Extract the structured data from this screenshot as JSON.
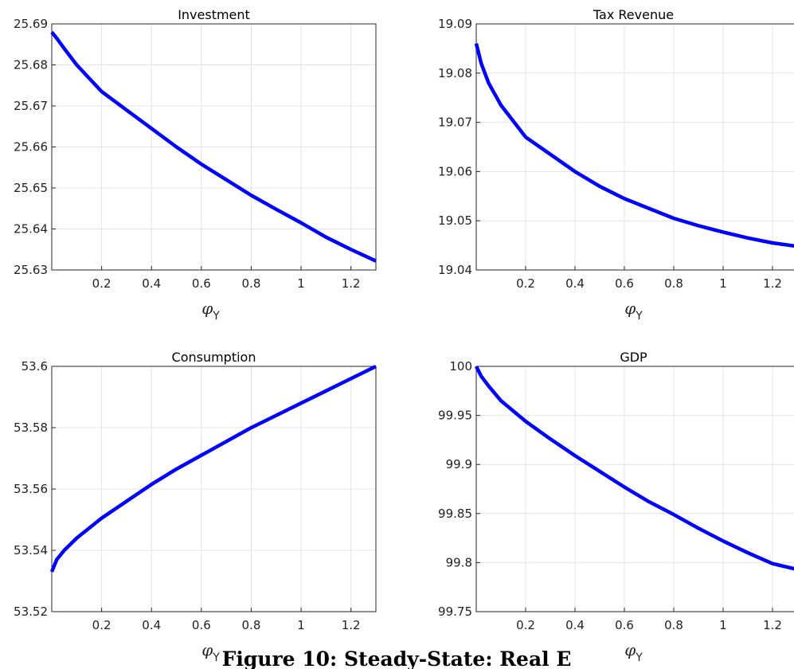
{
  "chart_data": [
    {
      "type": "line",
      "title": "Investment",
      "xlabel_symbol": "φ",
      "xlabel_subscript": "Y",
      "x": [
        0,
        0.02,
        0.05,
        0.1,
        0.2,
        0.3,
        0.4,
        0.5,
        0.6,
        0.7,
        0.8,
        0.9,
        1.0,
        1.1,
        1.2,
        1.3
      ],
      "series": [
        {
          "color": "#0000ff",
          "values": [
            25.688,
            25.6865,
            25.684,
            25.68,
            25.6735,
            25.669,
            25.6645,
            25.66,
            25.6558,
            25.652,
            25.6482,
            25.6448,
            25.6415,
            25.638,
            25.635,
            25.6322
          ]
        }
      ],
      "xlim": [
        0,
        1.3
      ],
      "ylim": [
        25.63,
        25.69
      ],
      "xticks": [
        0.2,
        0.4,
        0.6,
        0.8,
        1,
        1.2
      ],
      "yticks": [
        25.63,
        25.64,
        25.65,
        25.66,
        25.67,
        25.68,
        25.69
      ],
      "grid": true
    },
    {
      "type": "line",
      "title": "Tax Revenue",
      "xlabel_symbol": "φ",
      "xlabel_subscript": "Y",
      "x": [
        0,
        0.02,
        0.05,
        0.1,
        0.2,
        0.3,
        0.4,
        0.5,
        0.6,
        0.7,
        0.8,
        0.9,
        1.0,
        1.1,
        1.2,
        1.3
      ],
      "series": [
        {
          "color": "#0000ff",
          "values": [
            19.086,
            19.082,
            19.078,
            19.0735,
            19.067,
            19.0635,
            19.06,
            19.057,
            19.0545,
            19.0525,
            19.0505,
            19.049,
            19.0477,
            19.0465,
            19.0455,
            19.0448
          ]
        }
      ],
      "xlim": [
        0,
        1.3
      ],
      "ylim": [
        19.04,
        19.09
      ],
      "xticks": [
        0.2,
        0.4,
        0.6,
        0.8,
        1,
        1.2
      ],
      "yticks": [
        19.04,
        19.05,
        19.06,
        19.07,
        19.08,
        19.09
      ],
      "grid": true
    },
    {
      "type": "line",
      "title": "Consumption",
      "xlabel_symbol": "φ",
      "xlabel_subscript": "Y",
      "x": [
        0,
        0.02,
        0.05,
        0.1,
        0.2,
        0.3,
        0.4,
        0.5,
        0.6,
        0.7,
        0.8,
        0.9,
        1.0,
        1.1,
        1.2,
        1.3
      ],
      "series": [
        {
          "color": "#0000ff",
          "values": [
            53.533,
            53.537,
            53.54,
            53.544,
            53.5505,
            53.556,
            53.5615,
            53.5665,
            53.571,
            53.5755,
            53.58,
            53.584,
            53.588,
            53.592,
            53.596,
            53.6
          ]
        }
      ],
      "xlim": [
        0,
        1.3
      ],
      "ylim": [
        53.52,
        53.6
      ],
      "xticks": [
        0.2,
        0.4,
        0.6,
        0.8,
        1,
        1.2
      ],
      "yticks": [
        53.52,
        53.54,
        53.56,
        53.58,
        53.6
      ],
      "grid": true
    },
    {
      "type": "line",
      "title": "GDP",
      "xlabel_symbol": "φ",
      "xlabel_subscript": "Y",
      "x": [
        0,
        0.02,
        0.05,
        0.1,
        0.2,
        0.3,
        0.4,
        0.5,
        0.6,
        0.7,
        0.8,
        0.9,
        1.0,
        1.1,
        1.2,
        1.3
      ],
      "series": [
        {
          "color": "#0000ff",
          "values": [
            100,
            99.99,
            99.98,
            99.965,
            99.944,
            99.926,
            99.909,
            99.893,
            99.877,
            99.862,
            99.849,
            99.835,
            99.822,
            99.81,
            99.799,
            99.793
          ]
        }
      ],
      "xlim": [
        0,
        1.3
      ],
      "ylim": [
        99.75,
        100
      ],
      "xticks": [
        0.2,
        0.4,
        0.6,
        0.8,
        1,
        1.2
      ],
      "yticks": [
        99.75,
        99.8,
        99.85,
        99.9,
        99.95,
        100
      ],
      "grid": true
    }
  ],
  "caption": "Figure 10: Steady-State: Real E"
}
